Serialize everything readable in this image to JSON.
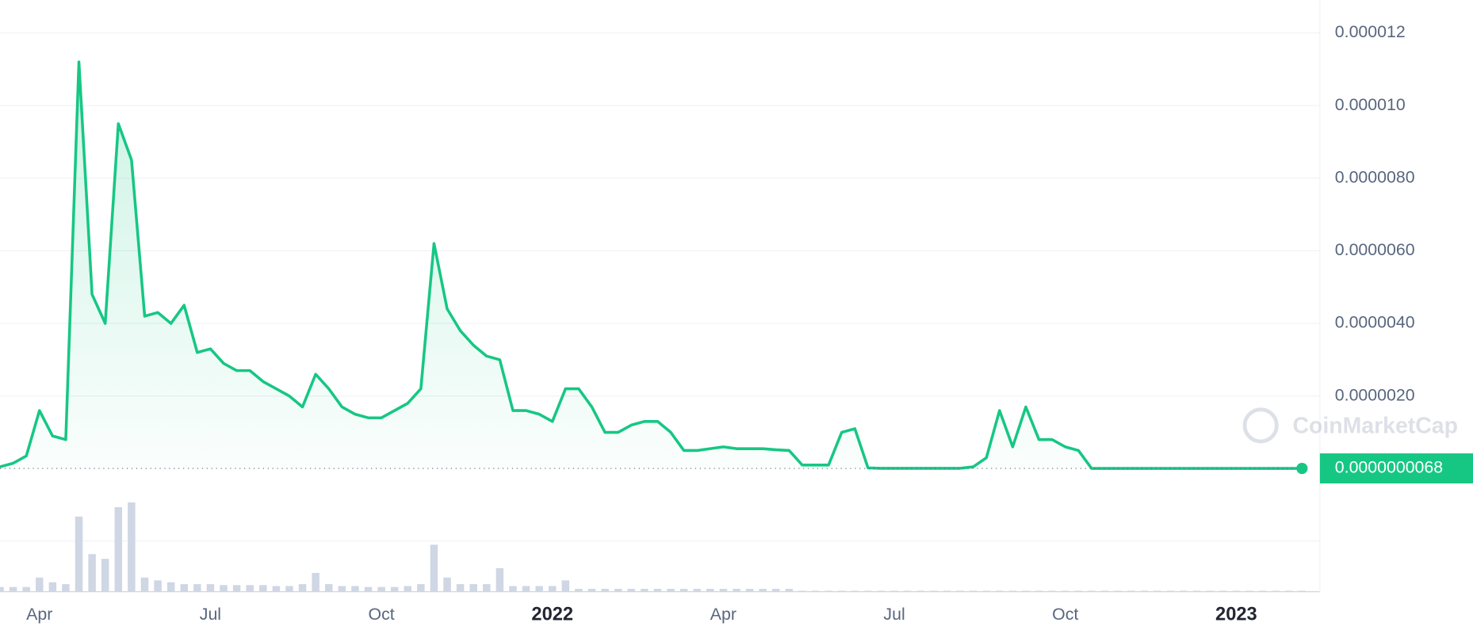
{
  "chart_data": {
    "type": "line",
    "series": [
      {
        "name": "Price",
        "color": "#16c784",
        "values": [
          5e-08,
          1.5e-07,
          3.5e-07,
          1.6e-06,
          9e-07,
          8e-07,
          1.12e-05,
          4.8e-06,
          4e-06,
          9.5e-06,
          8.5e-06,
          4.2e-06,
          4.3e-06,
          4e-06,
          4.5e-06,
          3.2e-06,
          3.3e-06,
          2.9e-06,
          2.7e-06,
          2.7e-06,
          2.4e-06,
          2.2e-06,
          2e-06,
          1.7e-06,
          2.6e-06,
          2.2e-06,
          1.7e-06,
          1.5e-06,
          1.4e-06,
          1.4e-06,
          1.6e-06,
          1.8e-06,
          2.2e-06,
          6.2e-06,
          4.4e-06,
          3.8e-06,
          3.4e-06,
          3.1e-06,
          3e-06,
          1.6e-06,
          1.6e-06,
          1.5e-06,
          1.3e-06,
          2.2e-06,
          2.2e-06,
          1.7e-06,
          1e-06,
          1e-06,
          1.2e-06,
          1.3e-06,
          1.3e-06,
          1e-06,
          5e-07,
          5e-07,
          5.5e-07,
          6e-07,
          5.5e-07,
          5.5e-07,
          5.5e-07,
          5.2e-07,
          5e-07,
          1e-07,
          1e-07,
          1e-07,
          1e-06,
          1.1e-06,
          2e-08,
          1e-08,
          1e-08,
          1e-08,
          1e-08,
          1e-08,
          1e-08,
          1e-08,
          5e-08,
          3e-07,
          1.6e-06,
          6e-07,
          1.7e-06,
          8e-07,
          8e-07,
          6e-07,
          5e-07,
          6.8e-09,
          6.8e-09,
          6.8e-09,
          6.8e-09,
          6.8e-09,
          6.8e-09,
          6.8e-09,
          6.8e-09,
          6.8e-09,
          6.8e-09,
          6.8e-09,
          6.8e-09,
          6.8e-09,
          6.8e-09,
          6.8e-09,
          6.8e-09,
          6.8e-09
        ]
      }
    ],
    "volume": [
      5,
      5,
      5,
      15,
      10,
      8,
      80,
      40,
      35,
      90,
      95,
      15,
      12,
      10,
      8,
      8,
      8,
      7,
      7,
      7,
      7,
      6,
      6,
      8,
      20,
      8,
      6,
      6,
      5,
      5,
      5,
      6,
      8,
      50,
      15,
      8,
      8,
      8,
      25,
      6,
      6,
      6,
      6,
      12,
      3,
      3,
      3,
      3,
      3,
      3,
      3,
      3,
      3,
      3,
      3,
      3,
      3,
      3,
      3,
      3,
      3,
      1,
      1,
      1,
      1,
      1,
      1,
      1,
      1,
      1,
      1,
      1,
      1,
      1,
      1,
      1,
      1,
      1,
      1,
      1,
      1,
      1,
      1,
      1,
      1,
      1,
      1,
      1,
      1,
      1,
      1,
      1,
      1,
      1,
      1,
      1,
      1,
      1,
      1,
      1
    ],
    "categories": [
      null,
      null,
      null,
      "Apr",
      null,
      null,
      null,
      null,
      null,
      null,
      null,
      null,
      null,
      null,
      null,
      null,
      "Jul",
      null,
      null,
      null,
      null,
      null,
      null,
      null,
      null,
      null,
      null,
      null,
      null,
      "Oct",
      null,
      null,
      null,
      null,
      null,
      null,
      null,
      null,
      null,
      null,
      null,
      null,
      "2022",
      null,
      null,
      null,
      null,
      null,
      null,
      null,
      null,
      null,
      null,
      null,
      null,
      "Apr",
      null,
      null,
      null,
      null,
      null,
      null,
      null,
      null,
      null,
      null,
      null,
      null,
      "Jul",
      null,
      null,
      null,
      null,
      null,
      null,
      null,
      null,
      null,
      null,
      null,
      null,
      "Oct",
      null,
      null,
      null,
      null,
      null,
      null,
      null,
      null,
      null,
      null,
      null,
      null,
      "2023",
      null,
      null,
      null,
      null,
      null
    ],
    "ylim": [
      0,
      1.2905e-05
    ],
    "yticks": [
      {
        "value": 2e-06,
        "label": "0.0000020"
      },
      {
        "value": 4e-06,
        "label": "0.0000040"
      },
      {
        "value": 6e-06,
        "label": "0.0000060"
      },
      {
        "value": 8e-06,
        "label": "0.0000080"
      },
      {
        "value": 1e-05,
        "label": "0.000010"
      },
      {
        "value": 1.2e-05,
        "label": "0.000012"
      }
    ],
    "grid": true,
    "current_price": {
      "value": 6.8e-09,
      "label": "0.0000000068"
    },
    "watermark": "CoinMarketCap"
  }
}
